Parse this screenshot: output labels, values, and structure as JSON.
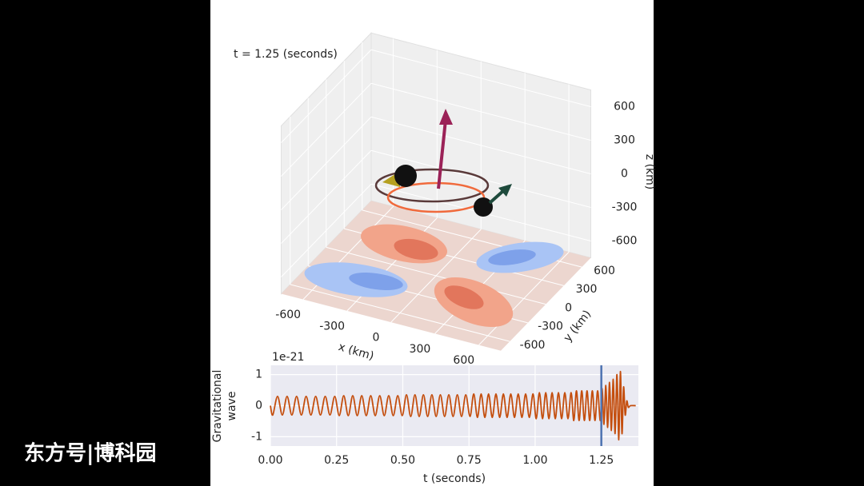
{
  "watermark": "东方号|博科园",
  "chart_data": [
    {
      "type": "surface3d",
      "annotation": "t = 1.25 (seconds)",
      "xlabel": "x (km)",
      "ylabel": "y (km)",
      "zlabel": "z (km)",
      "xlim": [
        -750,
        750
      ],
      "ylim": [
        -750,
        750
      ],
      "zlim": [
        -750,
        750
      ],
      "xticks": [
        -600,
        -300,
        0,
        300,
        600
      ],
      "yticks": [
        -600,
        -300,
        0,
        300,
        600
      ],
      "zticks": [
        -600,
        -300,
        0,
        300,
        600
      ]
    },
    {
      "type": "line",
      "xlabel": "t (seconds)",
      "ylabel": [
        "Gravitational",
        "wave"
      ],
      "offset_label": "1e-21",
      "xlim": [
        0,
        1.39
      ],
      "ylim": [
        -1.3,
        1.3
      ],
      "xticks": [
        {
          "value": 0,
          "label": "0.00"
        },
        {
          "value": 0.25,
          "label": "0.25"
        },
        {
          "value": 0.5,
          "label": "0.50"
        },
        {
          "value": 0.75,
          "label": "0.75"
        },
        {
          "value": 1,
          "label": "1.00"
        },
        {
          "value": 1.25,
          "label": "1.25"
        }
      ],
      "yticks": [
        -1,
        0,
        1
      ],
      "grid": true,
      "vline": {
        "value": 1.25,
        "color": "#4c72b0"
      },
      "x": [
        0,
        0.009,
        0.027,
        0.045,
        0.063,
        0.081,
        0.099,
        0.117,
        0.135,
        0.153,
        0.171,
        0.189,
        0.207,
        0.225,
        0.243,
        0.26,
        0.277,
        0.294,
        0.311,
        0.328,
        0.345,
        0.362,
        0.379,
        0.396,
        0.413,
        0.43,
        0.447,
        0.464,
        0.481,
        0.498,
        0.514,
        0.53,
        0.546,
        0.562,
        0.578,
        0.594,
        0.61,
        0.626,
        0.642,
        0.658,
        0.674,
        0.69,
        0.706,
        0.722,
        0.738,
        0.754,
        0.768,
        0.782,
        0.796,
        0.81,
        0.824,
        0.838,
        0.852,
        0.866,
        0.88,
        0.894,
        0.908,
        0.922,
        0.936,
        0.95,
        0.964,
        0.978,
        0.992,
        1.004,
        1.016,
        1.028,
        1.04,
        1.052,
        1.064,
        1.076,
        1.088,
        1.1,
        1.112,
        1.124,
        1.136,
        1.146,
        1.156,
        1.166,
        1.176,
        1.186,
        1.196,
        1.206,
        1.216,
        1.226,
        1.236,
        1.246,
        1.253,
        1.26,
        1.267,
        1.274,
        1.281,
        1.288,
        1.295,
        1.302,
        1.309,
        1.316,
        1.322,
        1.328,
        1.334,
        1.34,
        1.346,
        1.352,
        1.36,
        1.38
      ],
      "series": [
        {
          "color": "#c44e0e",
          "values": [
            0,
            -0.3,
            0.3,
            -0.3,
            0.3,
            -0.3,
            0.3,
            -0.3,
            0.3,
            -0.3,
            0.3,
            -0.3,
            0.3,
            -0.3,
            0.3,
            -0.32,
            0.32,
            -0.32,
            0.32,
            -0.32,
            0.32,
            -0.32,
            0.32,
            -0.32,
            0.32,
            -0.32,
            0.32,
            -0.32,
            0.32,
            -0.32,
            0.35,
            -0.35,
            0.35,
            -0.35,
            0.35,
            -0.35,
            0.35,
            -0.35,
            0.35,
            -0.35,
            0.35,
            -0.35,
            0.35,
            -0.35,
            0.35,
            -0.35,
            0.38,
            -0.38,
            0.38,
            -0.38,
            0.38,
            -0.38,
            0.38,
            -0.38,
            0.38,
            -0.38,
            0.38,
            -0.38,
            0.38,
            -0.38,
            0.38,
            -0.38,
            0.38,
            -0.42,
            0.42,
            -0.42,
            0.42,
            -0.42,
            0.42,
            -0.42,
            0.42,
            -0.42,
            0.42,
            -0.42,
            0.42,
            -0.48,
            0.48,
            -0.48,
            0.48,
            -0.48,
            0.48,
            -0.48,
            0.48,
            -0.48,
            0.48,
            -0.48,
            0.55,
            -0.6,
            0.65,
            -0.7,
            0.75,
            -0.8,
            0.85,
            -0.9,
            1.0,
            -1.1,
            1.1,
            -0.9,
            0.6,
            -0.3,
            0.15,
            -0.05,
            0,
            0
          ]
        }
      ]
    }
  ]
}
